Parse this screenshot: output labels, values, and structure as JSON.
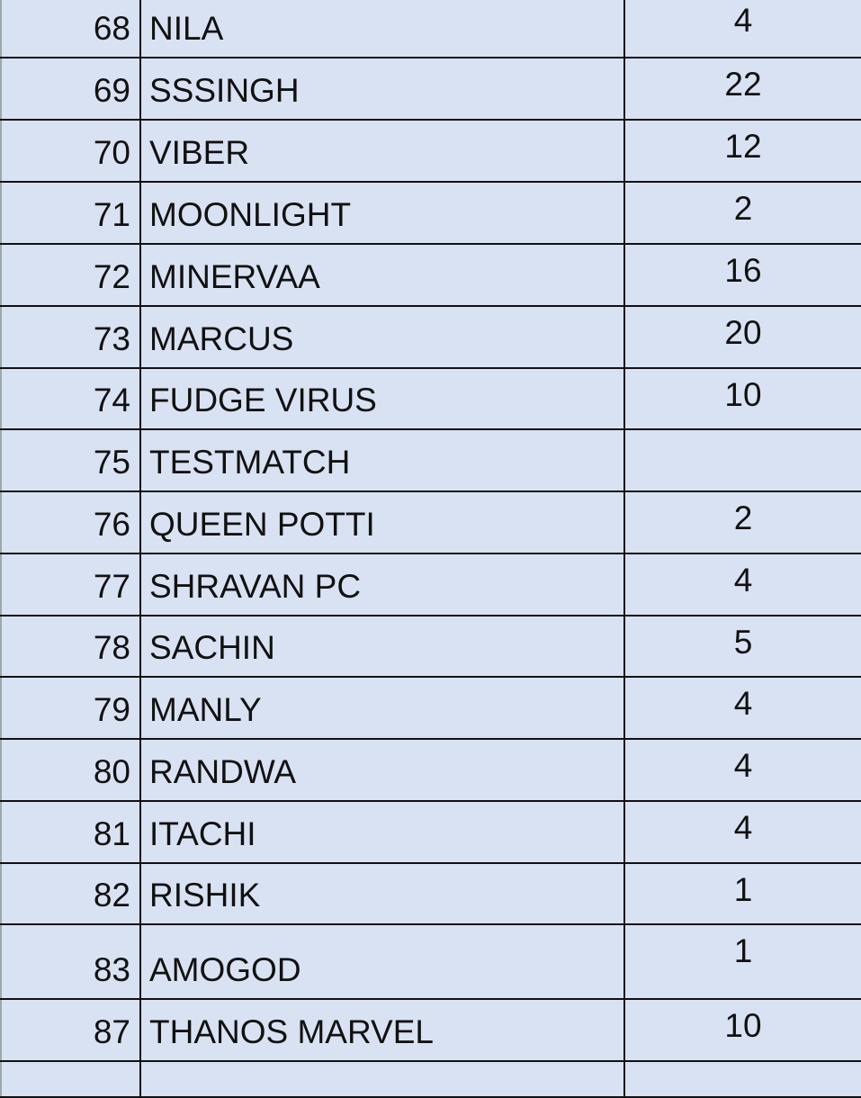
{
  "rows": [
    {
      "id": "68",
      "name": "NILA",
      "value": "4"
    },
    {
      "id": "69",
      "name": "SSSINGH",
      "value": "22"
    },
    {
      "id": "70",
      "name": "VIBER",
      "value": "12"
    },
    {
      "id": "71",
      "name": "MOONLIGHT",
      "value": "2"
    },
    {
      "id": "72",
      "name": "MINERVAA",
      "value": "16"
    },
    {
      "id": "73",
      "name": "MARCUS",
      "value": "20"
    },
    {
      "id": "74",
      "name": "FUDGE VIRUS",
      "value": "10"
    },
    {
      "id": "75",
      "name": "TESTMATCH",
      "value": ""
    },
    {
      "id": "76",
      "name": "QUEEN POTTI",
      "value": "2"
    },
    {
      "id": "77",
      "name": "SHRAVAN PC",
      "value": "4"
    },
    {
      "id": "78",
      "name": "SACHIN",
      "value": "5"
    },
    {
      "id": "79",
      "name": "MANLY",
      "value": "4"
    },
    {
      "id": "80",
      "name": "RANDWA",
      "value": "4"
    },
    {
      "id": "81",
      "name": "ITACHI",
      "value": "4"
    },
    {
      "id": "82",
      "name": "RISHIK",
      "value": "1"
    },
    {
      "id": "83",
      "name": "AMOGOD",
      "value": "1"
    },
    {
      "id": "87",
      "name": "THANOS MARVEL",
      "value": "10"
    },
    {
      "id": "",
      "name": "",
      "value": ""
    }
  ],
  "colors": {
    "cell_background": "#d9e2f3",
    "grid": "#111111"
  }
}
